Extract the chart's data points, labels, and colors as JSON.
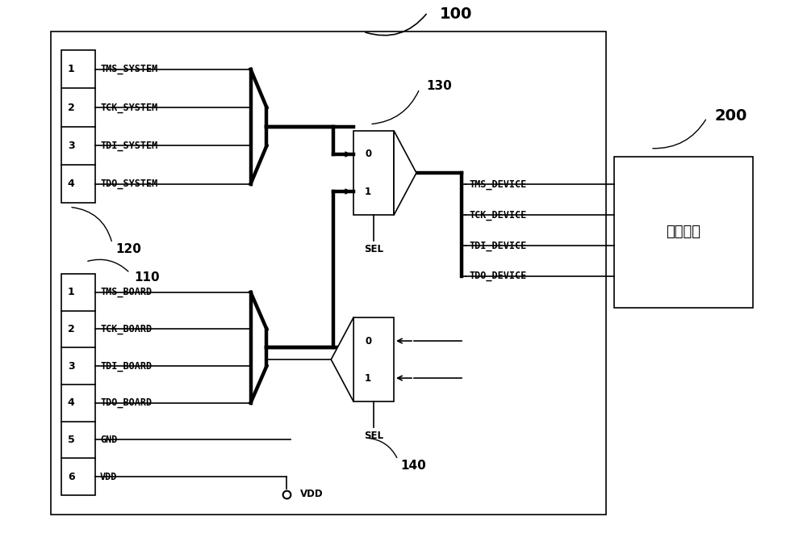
{
  "bg_color": "#ffffff",
  "label_100": "100",
  "label_200": "200",
  "label_130": "130",
  "label_140": "140",
  "label_120": "120",
  "label_110": "110",
  "system_connector_labels": [
    "1",
    "2",
    "3",
    "4"
  ],
  "system_signal_labels": [
    "TMS_SYSTEM",
    "TCK_SYSTEM",
    "TDI_SYSTEM",
    "TDO_SYSTEM"
  ],
  "board_connector_labels": [
    "1",
    "2",
    "3",
    "4",
    "5",
    "6"
  ],
  "board_signal_labels": [
    "TMS_BOARD",
    "TCK_BOARD",
    "TDI_BOARD",
    "TDO_BOARD",
    "GND",
    "VDD"
  ],
  "device_signal_labels": [
    "TMS_DEVICE",
    "TCK_DEVICE",
    "TDI_DEVICE",
    "TDO_DEVICE"
  ],
  "device_box_label": "待测器件",
  "sel_label": "SEL",
  "vdd_label": "VDD"
}
